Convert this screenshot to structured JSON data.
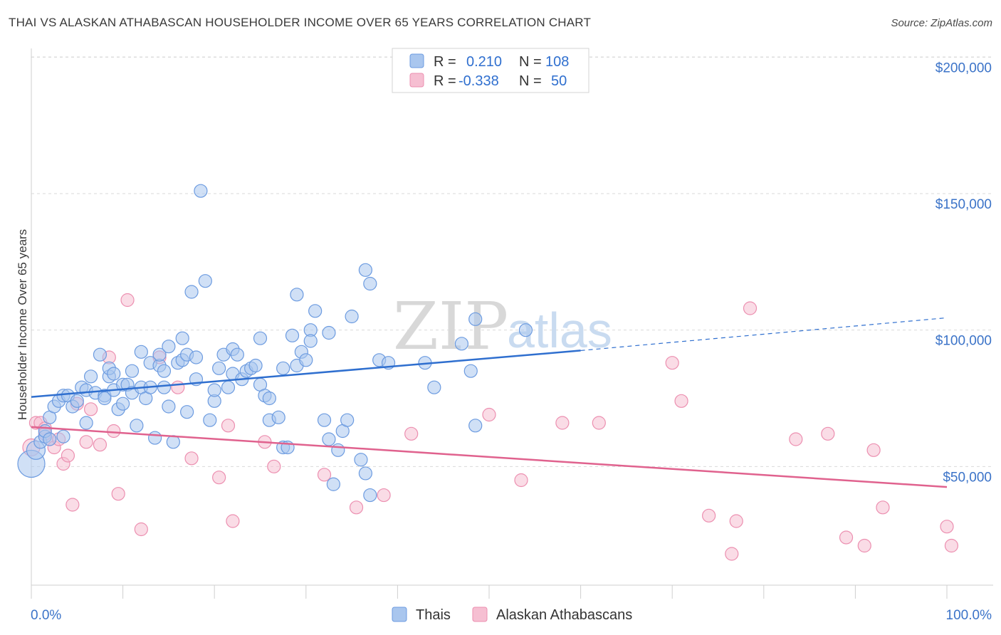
{
  "title": "THAI VS ALASKAN ATHABASCAN HOUSEHOLDER INCOME OVER 65 YEARS CORRELATION CHART",
  "source": "Source: ZipAtlas.com",
  "watermark": {
    "zip": "ZIP",
    "atlas": "atlas"
  },
  "colors": {
    "thai_fill": "#a9c6ee",
    "thai_stroke": "#6c9be0",
    "thai_line": "#2f6fcf",
    "alaskan_fill": "#f6bfd2",
    "alaskan_stroke": "#ec8fb0",
    "alaskan_line": "#e0628e",
    "axis_text": "#3b73c8",
    "grid": "#d9d9d9"
  },
  "legend": {
    "thai": {
      "r_label": "R =",
      "r_value": "0.210",
      "n_label": "N =",
      "n_value": "108"
    },
    "alaskan": {
      "r_label": "R =",
      "r_value": "-0.338",
      "n_label": "N =",
      "n_value": "50"
    }
  },
  "bottom_legend": {
    "thai": "Thais",
    "alaskan": "Alaskan Athabascans"
  },
  "chart_data": {
    "type": "scatter",
    "ylabel": "Householder Income Over 65 years",
    "xlim": [
      0,
      100
    ],
    "ylim": [
      0,
      210000
    ],
    "x_tick_labels": [
      {
        "value": 0,
        "label": "0.0%"
      },
      {
        "value": 100,
        "label": "100.0%"
      }
    ],
    "y_tick_labels": [
      {
        "value": 50000,
        "label": "$50,000"
      },
      {
        "value": 100000,
        "label": "$100,000"
      },
      {
        "value": 150000,
        "label": "$150,000"
      },
      {
        "value": 200000,
        "label": "$200,000"
      }
    ],
    "series": [
      {
        "name": "Thais",
        "r": 0.21,
        "n": 108,
        "trend": {
          "x0": 0,
          "y0": 75500,
          "x1": 60,
          "y1": 92500,
          "dash_x1": 100,
          "dash_y1": 104500
        },
        "points": [
          [
            0,
            51000
          ],
          [
            0.5,
            56000
          ],
          [
            1,
            59000
          ],
          [
            1.5,
            61000
          ],
          [
            1.5,
            63000
          ],
          [
            2,
            60000
          ],
          [
            2,
            68000
          ],
          [
            2.5,
            72000
          ],
          [
            3,
            74000
          ],
          [
            3.5,
            76000
          ],
          [
            4,
            76000
          ],
          [
            4.5,
            72000
          ],
          [
            5,
            74000
          ],
          [
            5.5,
            79000
          ],
          [
            6,
            78000
          ],
          [
            6.5,
            83000
          ],
          [
            7,
            77000
          ],
          [
            7.5,
            91000
          ],
          [
            8,
            76000
          ],
          [
            8.5,
            83000
          ],
          [
            8.5,
            86000
          ],
          [
            9,
            84000
          ],
          [
            9,
            78000
          ],
          [
            9.5,
            71000
          ],
          [
            10,
            80000
          ],
          [
            10.5,
            80000
          ],
          [
            11,
            77000
          ],
          [
            11,
            85000
          ],
          [
            12,
            79000
          ],
          [
            12,
            92000
          ],
          [
            12.5,
            75000
          ],
          [
            13,
            88000
          ],
          [
            13,
            79000
          ],
          [
            13.5,
            60500
          ],
          [
            14,
            87000
          ],
          [
            14,
            91000
          ],
          [
            14.5,
            85000
          ],
          [
            14.5,
            79000
          ],
          [
            15,
            72000
          ],
          [
            15,
            94000
          ],
          [
            15.5,
            59000
          ],
          [
            16,
            88000
          ],
          [
            16.5,
            89000
          ],
          [
            16.5,
            97000
          ],
          [
            17,
            70000
          ],
          [
            17,
            91000
          ],
          [
            17.5,
            114000
          ],
          [
            18,
            90000
          ],
          [
            18,
            82000
          ],
          [
            18.5,
            151000
          ],
          [
            19,
            118000
          ],
          [
            19.5,
            67000
          ],
          [
            20,
            74000
          ],
          [
            20,
            78000
          ],
          [
            20.5,
            86000
          ],
          [
            21,
            91000
          ],
          [
            21.5,
            79000
          ],
          [
            22,
            84000
          ],
          [
            22,
            93000
          ],
          [
            22.5,
            91000
          ],
          [
            23,
            82000
          ],
          [
            23.5,
            85000
          ],
          [
            24,
            86000
          ],
          [
            24.5,
            87000
          ],
          [
            25,
            80000
          ],
          [
            25,
            97000
          ],
          [
            25.5,
            76000
          ],
          [
            26,
            75000
          ],
          [
            26,
            67000
          ],
          [
            27,
            68000
          ],
          [
            27.5,
            86000
          ],
          [
            27.5,
            57000
          ],
          [
            28,
            57000
          ],
          [
            28.5,
            98000
          ],
          [
            29,
            87000
          ],
          [
            29,
            113000
          ],
          [
            29.5,
            92000
          ],
          [
            30,
            89000
          ],
          [
            30.5,
            100000
          ],
          [
            30.5,
            96000
          ],
          [
            31,
            107000
          ],
          [
            32,
            67000
          ],
          [
            32.5,
            60000
          ],
          [
            32.5,
            99000
          ],
          [
            33,
            43500
          ],
          [
            33.5,
            56000
          ],
          [
            34,
            63000
          ],
          [
            34.5,
            67000
          ],
          [
            35,
            105000
          ],
          [
            36,
            52500
          ],
          [
            36.5,
            47500
          ],
          [
            36.5,
            122000
          ],
          [
            37,
            39500
          ],
          [
            37,
            117000
          ],
          [
            38,
            89000
          ],
          [
            39,
            88000
          ],
          [
            43,
            88000
          ],
          [
            44,
            79000
          ],
          [
            47,
            95000
          ],
          [
            48,
            85000
          ],
          [
            48.5,
            65000
          ],
          [
            48.5,
            104000
          ],
          [
            54,
            100000
          ],
          [
            3.5,
            61000
          ],
          [
            6,
            66000
          ],
          [
            8,
            75000
          ],
          [
            10,
            73000
          ],
          [
            11.5,
            65000
          ]
        ]
      },
      {
        "name": "Alaskan Athabascans",
        "r": -0.338,
        "n": 50,
        "trend": {
          "x0": 0,
          "y0": 64500,
          "x1": 100,
          "y1": 42500
        },
        "points": [
          [
            0,
            57000
          ],
          [
            0.5,
            66000
          ],
          [
            1,
            66000
          ],
          [
            1.5,
            64000
          ],
          [
            2,
            60000
          ],
          [
            2.5,
            57000
          ],
          [
            3,
            60000
          ],
          [
            3.5,
            51000
          ],
          [
            4,
            54000
          ],
          [
            4.5,
            36000
          ],
          [
            5,
            73000
          ],
          [
            6,
            59000
          ],
          [
            6.5,
            71000
          ],
          [
            7.5,
            58000
          ],
          [
            8.5,
            90000
          ],
          [
            9,
            63000
          ],
          [
            9.5,
            40000
          ],
          [
            10.5,
            111000
          ],
          [
            12,
            27000
          ],
          [
            14,
            90000
          ],
          [
            16,
            79000
          ],
          [
            17.5,
            53000
          ],
          [
            20.5,
            46000
          ],
          [
            21.5,
            65000
          ],
          [
            22,
            30000
          ],
          [
            25.5,
            59000
          ],
          [
            26.5,
            50000
          ],
          [
            32,
            47000
          ],
          [
            35.5,
            35000
          ],
          [
            38.5,
            39500
          ],
          [
            41.5,
            62000
          ],
          [
            50,
            69000
          ],
          [
            53.5,
            45000
          ],
          [
            58,
            66000
          ],
          [
            62,
            66000
          ],
          [
            70,
            88000
          ],
          [
            71,
            74000
          ],
          [
            74,
            32000
          ],
          [
            76.5,
            18000
          ],
          [
            77,
            30000
          ],
          [
            78.5,
            108000
          ],
          [
            83.5,
            60000
          ],
          [
            87,
            62000
          ],
          [
            89,
            24000
          ],
          [
            91,
            21000
          ],
          [
            92,
            56000
          ],
          [
            93,
            35000
          ],
          [
            100,
            28000
          ],
          [
            100.5,
            21000
          ],
          [
            1.5,
            62000
          ]
        ]
      }
    ],
    "grid": true,
    "legend_position": "top-center"
  }
}
